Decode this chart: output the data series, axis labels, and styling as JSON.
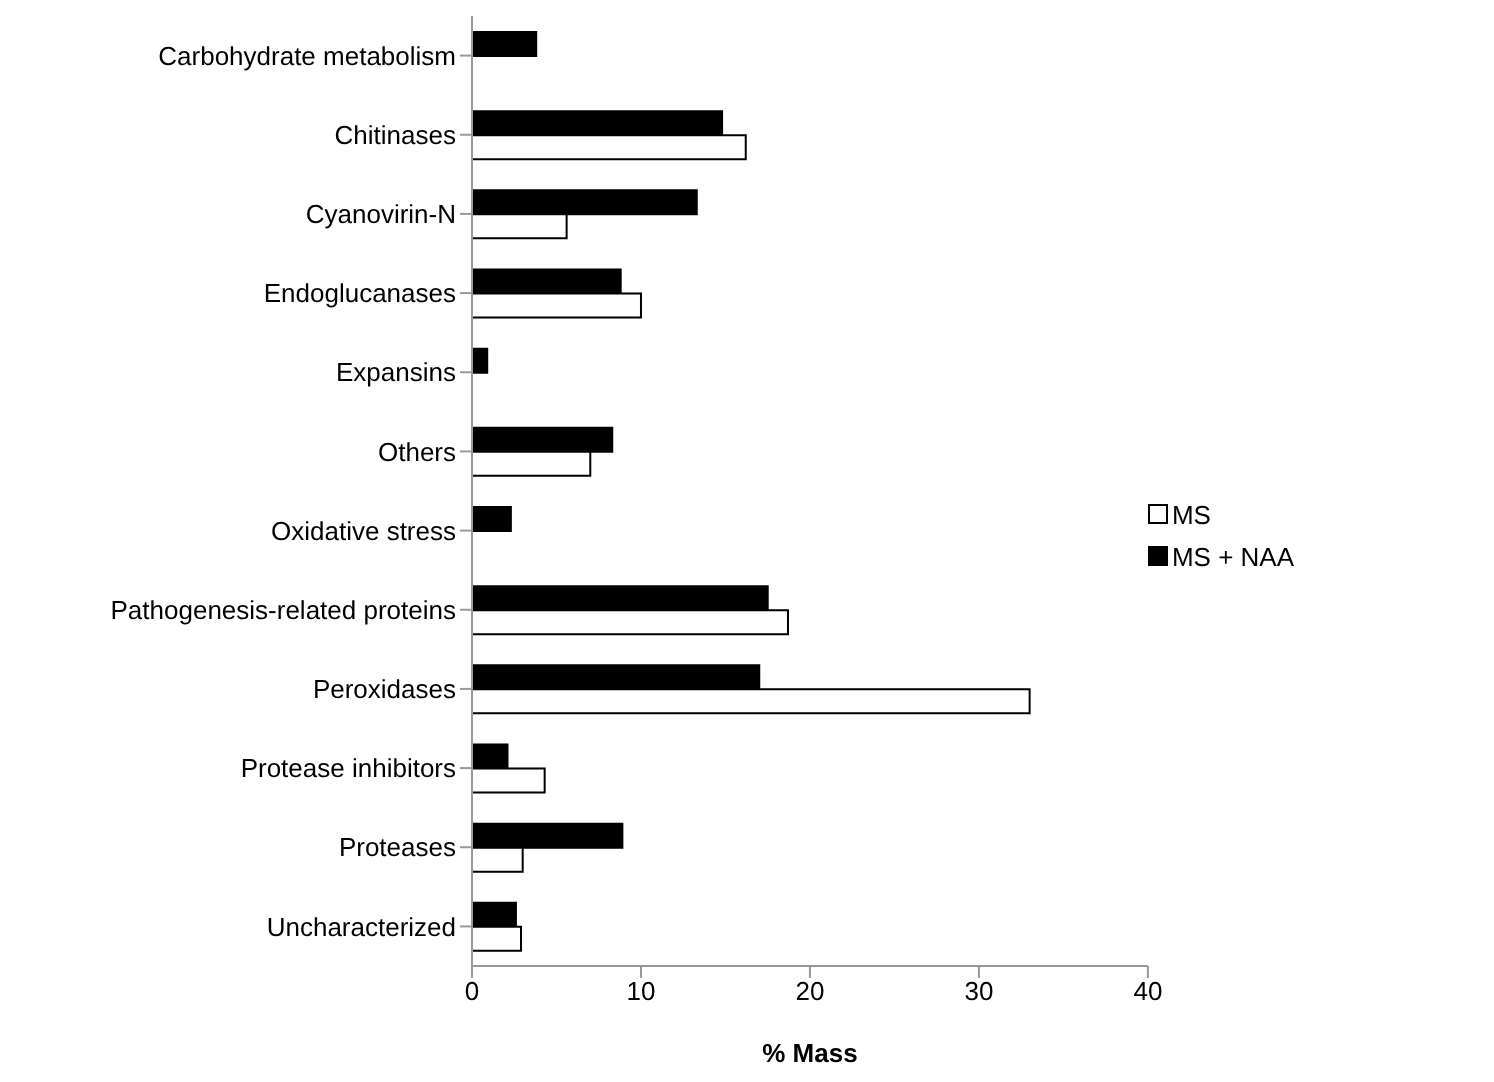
{
  "chart_data": {
    "type": "bar",
    "orientation": "horizontal",
    "xlabel": "% Mass",
    "categories": [
      "Carbohydrate metabolism",
      "Chitinases",
      "Cyanovirin-N",
      "Endoglucanases",
      "Expansins",
      "Others",
      "Oxidative stress",
      "Pathogenesis-related proteins",
      "Peroxidases",
      "Protease inhibitors",
      "Proteases",
      "Uncharacterized"
    ],
    "series": [
      {
        "name": "MS + NAA",
        "color": "#000000",
        "values": [
          3.8,
          14.8,
          13.3,
          8.8,
          0.9,
          8.3,
          2.3,
          17.5,
          17.0,
          2.1,
          8.9,
          2.6
        ]
      },
      {
        "name": "MS",
        "color": "#ffffff",
        "values": [
          null,
          16.2,
          5.6,
          10.0,
          null,
          7.0,
          null,
          18.7,
          33.0,
          4.3,
          3.0,
          2.9
        ]
      }
    ],
    "xlim": [
      0,
      40
    ],
    "xticks": [
      0,
      10,
      20,
      30,
      40
    ],
    "grid": false,
    "legend": "right"
  }
}
